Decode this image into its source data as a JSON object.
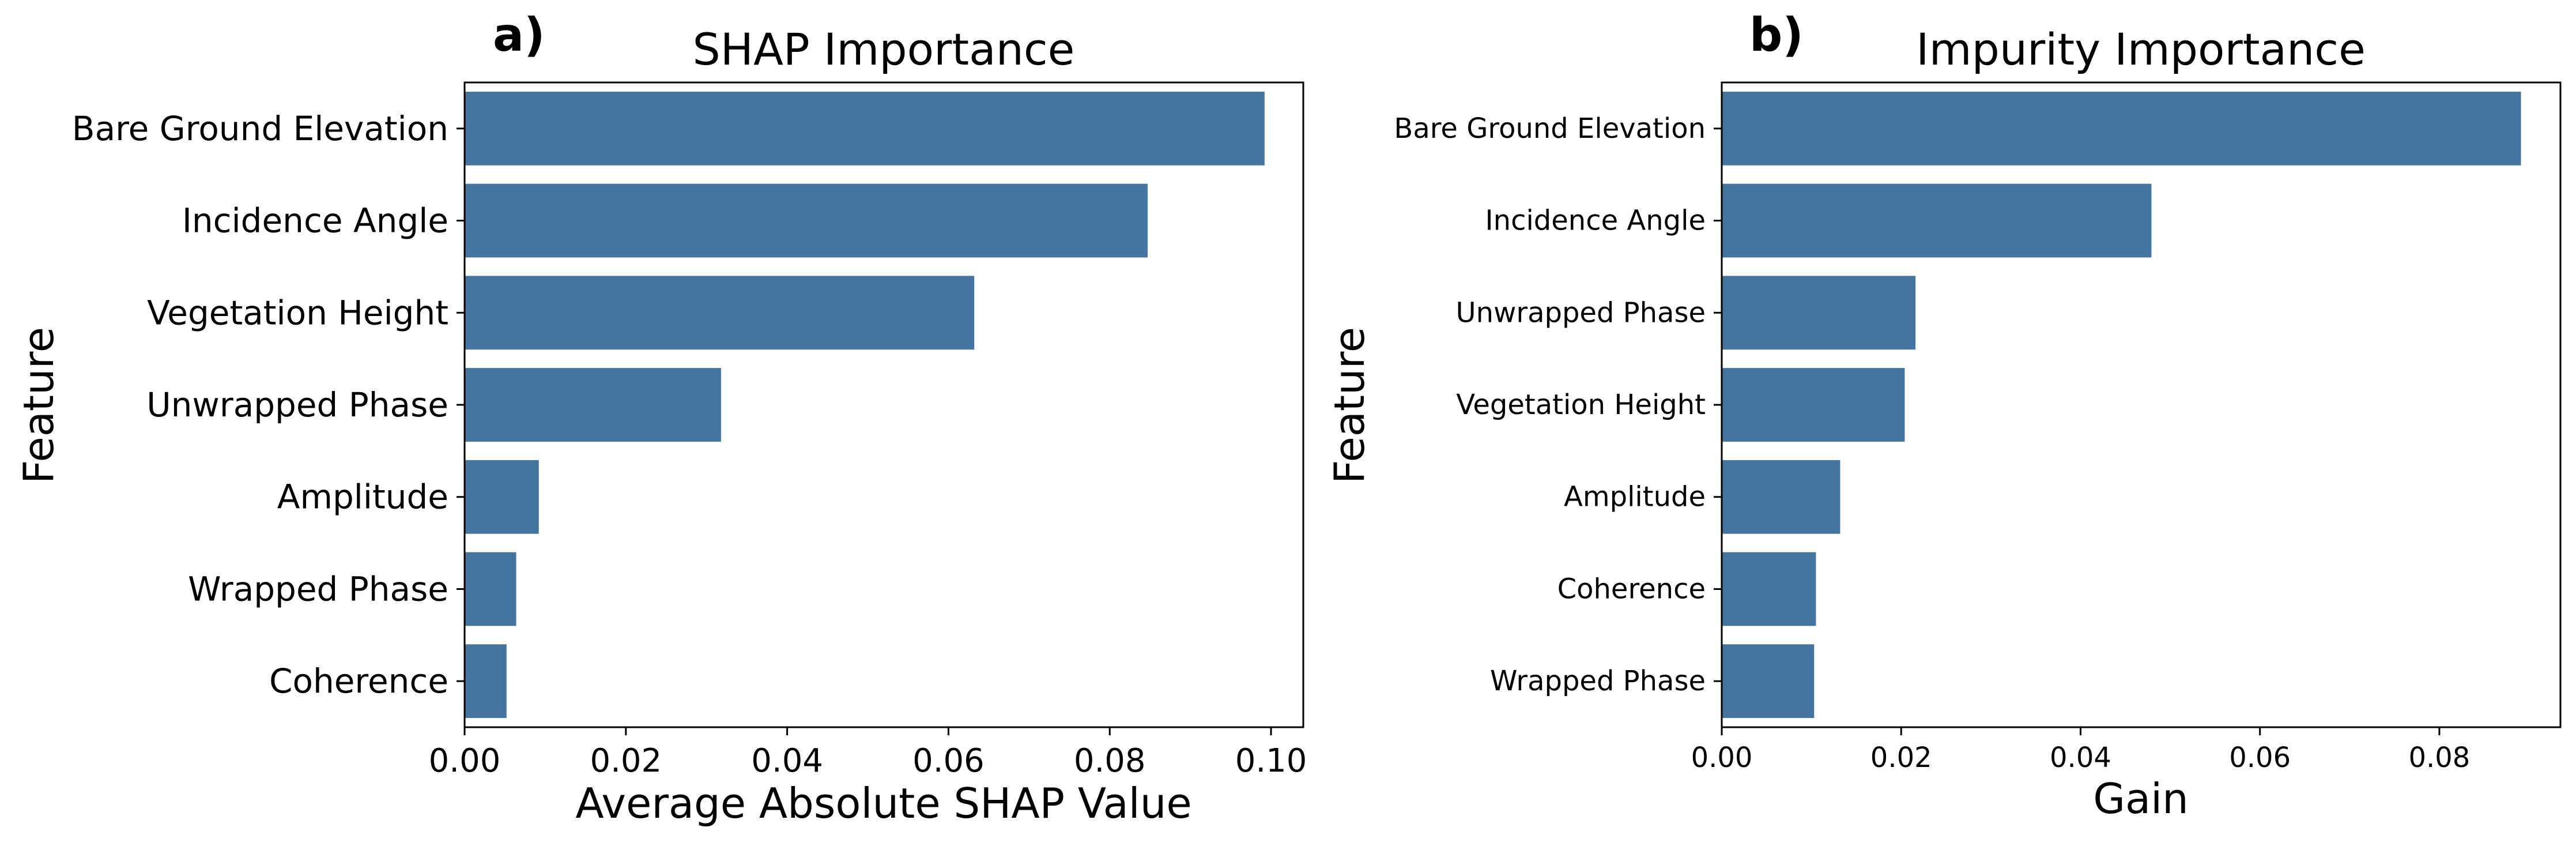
{
  "chart_data": [
    {
      "type": "bar",
      "orientation": "horizontal",
      "panel_label": "a)",
      "title": "SHAP Importance",
      "xlabel": "Average Absolute SHAP Value",
      "ylabel": "Feature",
      "categories": [
        "Bare Ground Elevation",
        "Incidence Angle",
        "Vegetation Height",
        "Unwrapped Phase",
        "Amplitude",
        "Wrapped Phase",
        "Coherence"
      ],
      "values": [
        0.0992,
        0.0847,
        0.0632,
        0.0318,
        0.0092,
        0.0064,
        0.0052
      ],
      "xlim": [
        0,
        0.104
      ],
      "xticks": [
        0.0,
        0.02,
        0.04,
        0.06,
        0.08,
        0.1
      ],
      "xtick_labels": [
        "0.00",
        "0.02",
        "0.04",
        "0.06",
        "0.08",
        "0.10"
      ],
      "bar_color": "#4475a0",
      "grid": false,
      "legend": false
    },
    {
      "type": "bar",
      "orientation": "horizontal",
      "panel_label": "b)",
      "title": "Impurity Importance",
      "xlabel": "Gain",
      "ylabel": "Feature",
      "categories": [
        "Bare Ground Elevation",
        "Incidence Angle",
        "Unwrapped Phase",
        "Vegetation Height",
        "Amplitude",
        "Coherence",
        "Wrapped Phase"
      ],
      "values": [
        0.0891,
        0.0479,
        0.0216,
        0.0204,
        0.0132,
        0.0105,
        0.0103
      ],
      "xlim": [
        0,
        0.0935
      ],
      "xticks": [
        0.0,
        0.02,
        0.04,
        0.06,
        0.08
      ],
      "xtick_labels": [
        "0.00",
        "0.02",
        "0.04",
        "0.06",
        "0.08"
      ],
      "bar_color": "#4475a0",
      "grid": false,
      "legend": false
    }
  ]
}
